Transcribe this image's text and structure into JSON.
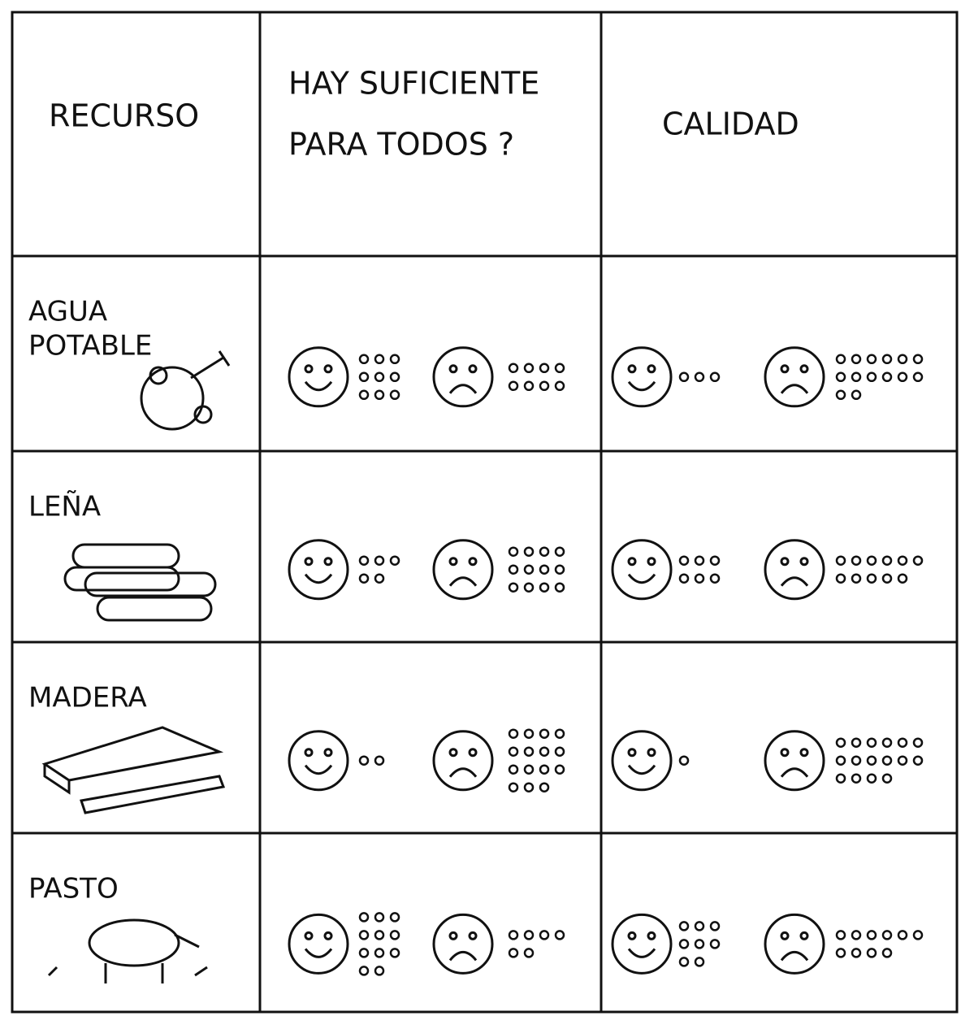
{
  "table": {
    "headers": [
      [
        "RECURSO"
      ],
      [
        "HAY SUFICIENTE",
        "PARA TODOS ?"
      ],
      [
        "CALIDAD"
      ]
    ],
    "rows": [
      {
        "resource": [
          "AGUA",
          "POTABLE"
        ],
        "enough": {
          "happy": 9,
          "sad": 8
        },
        "quality": {
          "happy": 3,
          "sad": 14
        }
      },
      {
        "resource": [
          "LEÑA"
        ],
        "enough": {
          "happy": 5,
          "sad": 12
        },
        "quality": {
          "happy": 6,
          "sad": 11
        }
      },
      {
        "resource": [
          "MADERA"
        ],
        "enough": {
          "happy": 2,
          "sad": 15
        },
        "quality": {
          "happy": 1,
          "sad": 16
        }
      },
      {
        "resource": [
          "PASTO"
        ],
        "enough": {
          "happy": 11,
          "sad": 6
        },
        "quality": {
          "happy": 8,
          "sad": 10
        }
      }
    ]
  }
}
